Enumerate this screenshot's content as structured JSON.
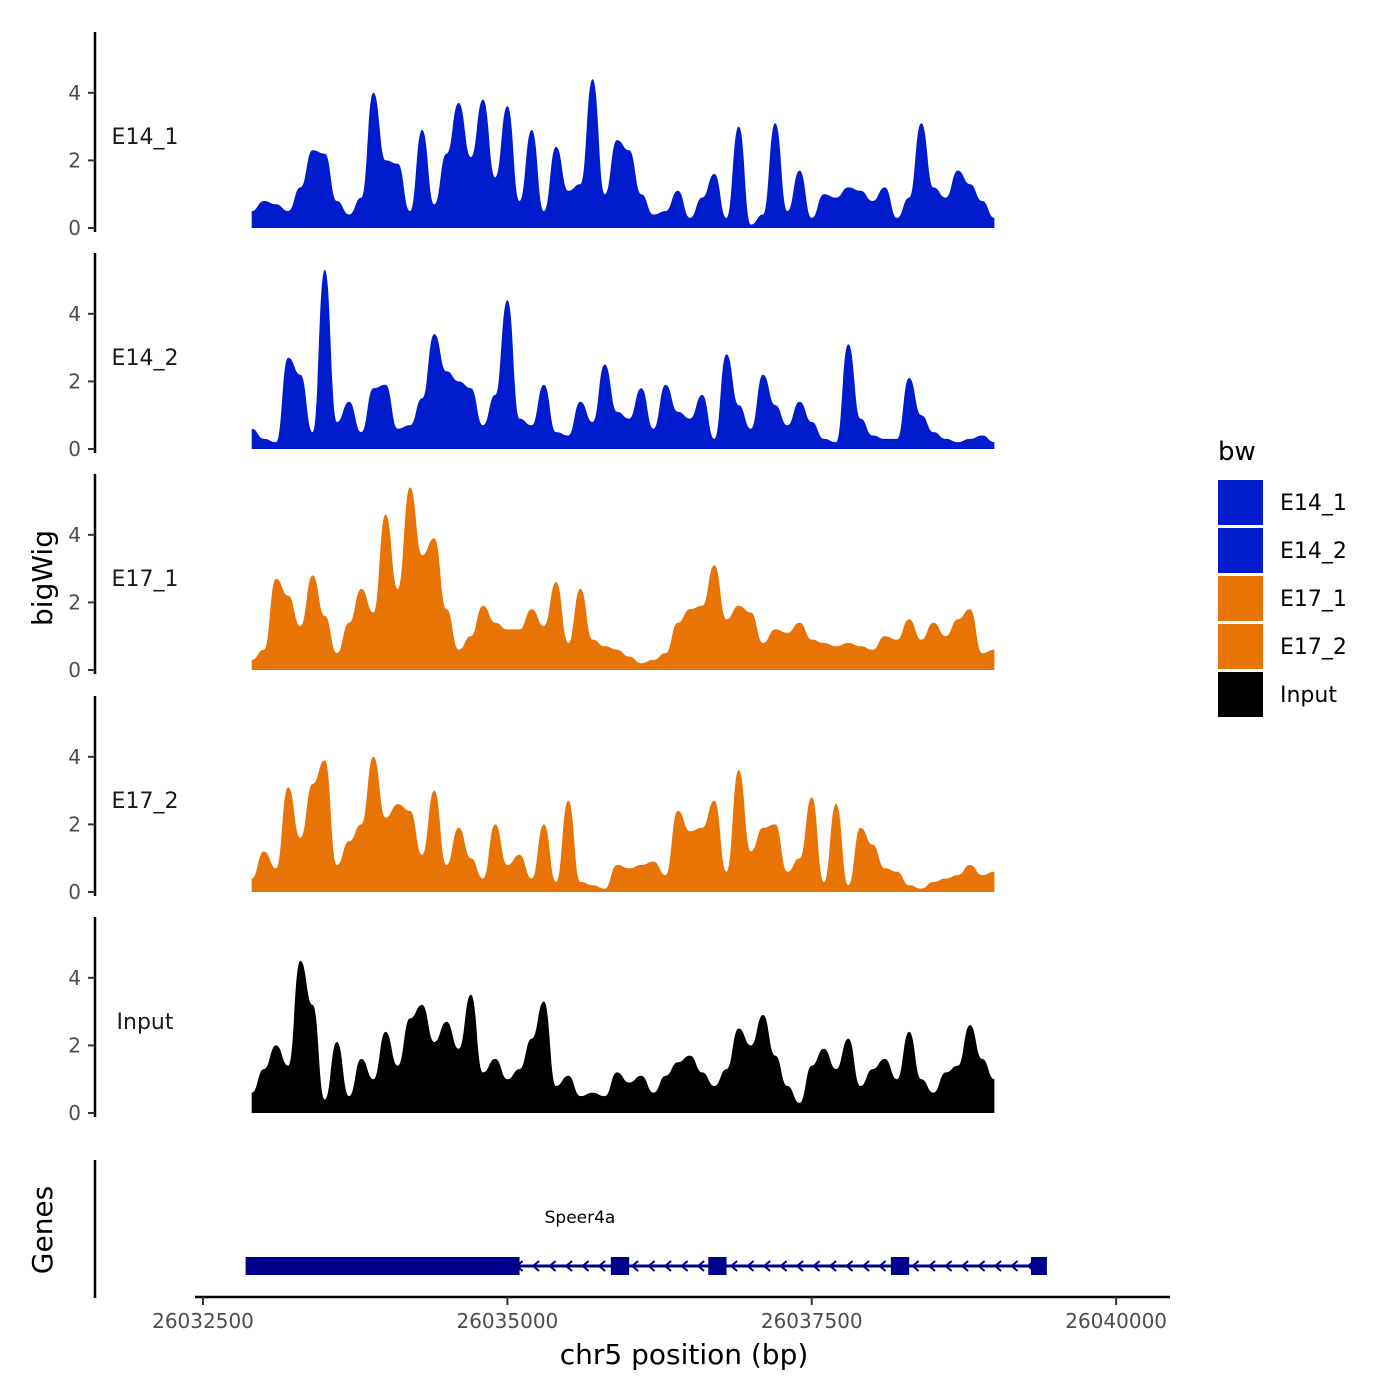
{
  "chart_data": {
    "type": "area",
    "title": "",
    "ylabel": "bigWig",
    "xlabel": "chr5 position (bp)",
    "xlim": [
      26032500,
      26040500
    ],
    "x_ticks": [
      26032500,
      26035000,
      26037500,
      26040000
    ],
    "x_tick_labels": [
      "26032500",
      "26035000",
      "26037500",
      "26040000"
    ],
    "y_ticks": [
      0,
      2,
      4
    ],
    "y_tick_labels": [
      "0",
      "2",
      "4"
    ],
    "ylim": [
      0,
      5.8
    ],
    "x_start": 26032900,
    "x_step": 100,
    "series": [
      {
        "name": "E14_1",
        "color": "#001ccd",
        "values": [
          0.5,
          0.8,
          0.7,
          0.5,
          1.2,
          2.3,
          2.2,
          0.8,
          0.4,
          0.9,
          4.0,
          2.0,
          1.9,
          0.5,
          2.9,
          0.7,
          2.2,
          3.7,
          2.1,
          3.8,
          1.5,
          3.6,
          0.8,
          2.9,
          0.5,
          2.4,
          1.1,
          1.3,
          4.4,
          1.0,
          2.6,
          2.3,
          1.0,
          0.4,
          0.5,
          1.1,
          0.3,
          0.9,
          1.6,
          0.3,
          3.0,
          0.1,
          0.4,
          3.1,
          0.5,
          1.7,
          0.3,
          1.0,
          0.9,
          1.2,
          1.1,
          0.8,
          1.2,
          0.3,
          0.9,
          3.1,
          1.2,
          0.9,
          1.7,
          1.3,
          0.8,
          0.3
        ]
      },
      {
        "name": "E14_2",
        "color": "#001ccd",
        "values": [
          0.6,
          0.3,
          0.2,
          2.7,
          2.2,
          0.5,
          5.3,
          0.8,
          1.4,
          0.5,
          1.8,
          1.9,
          0.6,
          0.7,
          1.5,
          3.4,
          2.3,
          2.0,
          1.8,
          0.7,
          1.6,
          4.4,
          0.9,
          0.7,
          1.9,
          0.5,
          0.4,
          1.4,
          0.8,
          2.5,
          1.1,
          0.9,
          1.8,
          0.6,
          1.9,
          1.1,
          0.9,
          1.6,
          0.3,
          2.8,
          1.3,
          0.6,
          2.2,
          1.3,
          0.7,
          1.4,
          0.8,
          0.3,
          0.2,
          3.1,
          0.9,
          0.4,
          0.3,
          0.3,
          2.1,
          1.0,
          0.5,
          0.3,
          0.2,
          0.3,
          0.4,
          0.2
        ]
      },
      {
        "name": "E17_1",
        "color": "#e87405",
        "values": [
          0.3,
          0.6,
          2.7,
          2.2,
          1.3,
          2.8,
          1.6,
          0.5,
          1.4,
          2.4,
          1.7,
          4.6,
          2.4,
          5.4,
          3.4,
          3.9,
          1.8,
          0.6,
          1.0,
          1.9,
          1.4,
          1.2,
          1.2,
          1.8,
          1.3,
          2.6,
          0.8,
          2.4,
          0.9,
          0.7,
          0.6,
          0.4,
          0.2,
          0.3,
          0.5,
          1.4,
          1.8,
          1.9,
          3.1,
          1.5,
          1.9,
          1.7,
          0.8,
          1.2,
          1.1,
          1.4,
          0.9,
          0.8,
          0.7,
          0.8,
          0.7,
          0.6,
          1.0,
          0.9,
          1.5,
          0.9,
          1.4,
          1.0,
          1.5,
          1.8,
          0.5,
          0.6
        ]
      },
      {
        "name": "E17_2",
        "color": "#e87405",
        "values": [
          0.4,
          1.2,
          0.7,
          3.1,
          1.6,
          3.2,
          3.9,
          0.8,
          1.5,
          2.0,
          4.0,
          2.2,
          2.6,
          2.4,
          1.1,
          3.0,
          0.8,
          1.9,
          1.0,
          0.4,
          2.0,
          0.8,
          1.1,
          0.4,
          2.0,
          0.3,
          2.7,
          0.3,
          0.2,
          0.1,
          0.8,
          0.7,
          0.8,
          0.9,
          0.5,
          2.4,
          1.8,
          1.9,
          2.7,
          0.6,
          3.6,
          1.2,
          1.9,
          2.0,
          0.6,
          1.0,
          2.8,
          0.3,
          2.6,
          0.2,
          1.9,
          1.4,
          0.7,
          0.6,
          0.2,
          0.1,
          0.3,
          0.4,
          0.5,
          0.8,
          0.5,
          0.6
        ]
      },
      {
        "name": "Input",
        "color": "#000000",
        "values": [
          0.6,
          1.3,
          2.0,
          1.4,
          4.5,
          3.2,
          0.4,
          2.1,
          0.5,
          1.6,
          1.0,
          2.4,
          1.4,
          2.8,
          3.2,
          2.1,
          2.7,
          1.9,
          3.5,
          1.2,
          1.6,
          1.0,
          1.3,
          2.2,
          3.3,
          0.8,
          1.1,
          0.5,
          0.6,
          0.5,
          1.2,
          0.9,
          1.1,
          0.6,
          1.1,
          1.5,
          1.7,
          1.2,
          0.8,
          1.3,
          2.5,
          2.0,
          2.9,
          1.7,
          0.8,
          0.3,
          1.4,
          1.9,
          1.3,
          2.2,
          0.8,
          1.3,
          1.6,
          1.0,
          2.4,
          1.0,
          0.6,
          1.2,
          1.4,
          2.6,
          1.6,
          1.0
        ]
      }
    ],
    "legend": {
      "title": "bw",
      "position": "right",
      "entries": [
        {
          "label": "E14_1",
          "color": "#001ccd"
        },
        {
          "label": "E14_2",
          "color": "#001ccd"
        },
        {
          "label": "E17_1",
          "color": "#e87405"
        },
        {
          "label": "E17_2",
          "color": "#e87405"
        },
        {
          "label": "Input",
          "color": "#000000"
        }
      ]
    },
    "genes_track": {
      "label": "Genes",
      "gene_name": "Speer4a",
      "strand": "-",
      "color": "#00008b",
      "start": 26032850,
      "end": 26039400,
      "exons": [
        [
          26032850,
          26035100
        ],
        [
          26035850,
          26036000
        ],
        [
          26036650,
          26036800
        ],
        [
          26038150,
          26038300
        ],
        [
          26039300,
          26039400
        ]
      ]
    }
  }
}
